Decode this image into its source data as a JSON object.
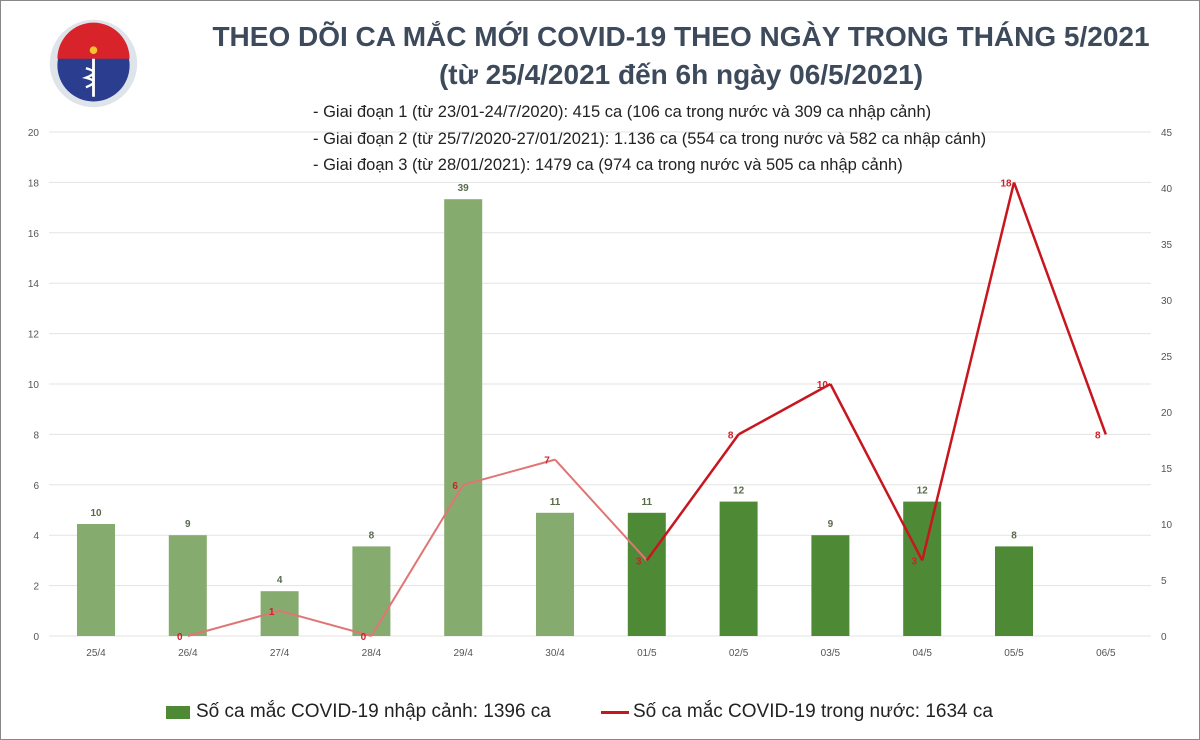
{
  "header": {
    "title_line1": "THEO DÕI CA MẮC MỚI COVID-19 THEO NGÀY TRONG THÁNG 5/2021",
    "title_line2": "(từ 25/4/2021 đến 6h ngày 06/5/2021)",
    "notes": [
      "- Giai đoạn 1 (từ 23/01-24/7/2020): 415 ca (106 ca trong nước và 309 ca nhập cảnh)",
      "- Giai đoạn 2 (từ 25/7/2020-27/01/2021): 1.136 ca (554 ca trong nước và 582 ca nhập cảnh)",
      "- Giai đoạn 3 (từ 28/01/2021): 1479 ca (974 ca trong nước và 505 ca nhập cảnh)"
    ],
    "logo_text": "BỘ Y TẾ"
  },
  "chart_data": {
    "type": "bar+line",
    "categories": [
      "25/4",
      "26/4",
      "27/4",
      "28/4",
      "29/4",
      "30/4",
      "01/5",
      "02/5",
      "03/5",
      "04/5",
      "05/5",
      "06/5"
    ],
    "left_axis": {
      "ylim": [
        0,
        20
      ],
      "ticks": [
        "0",
        "2",
        "4",
        "6",
        "8",
        "10",
        "12",
        "14",
        "16",
        "18",
        "20"
      ]
    },
    "right_axis": {
      "ylim": [
        0,
        45
      ],
      "ticks": [
        "0",
        "5",
        "10",
        "15",
        "20",
        "25",
        "30",
        "35",
        "40",
        "45"
      ]
    },
    "grid": true,
    "legend_placement": "bottom",
    "series": [
      {
        "name": "Số ca mắc COVID-19 nhập cảnh: 1396 ca",
        "type": "bar",
        "axis": "right",
        "values": [
          10,
          9,
          4,
          8,
          39,
          11,
          11,
          12,
          9,
          12,
          8,
          null
        ],
        "color_before": "#86ab6e",
        "color_after": "#4e8a35",
        "highlight_from": "01/5"
      },
      {
        "name": "Số ca mắc COVID-19 trong nước: 1634 ca",
        "type": "line",
        "axis": "left",
        "values": [
          null,
          0,
          1,
          0,
          6,
          7,
          3,
          8,
          10,
          3,
          18,
          8
        ],
        "color_before": "#e07575",
        "color_after": "#c8161e",
        "highlight_from": "01/5"
      }
    ]
  }
}
